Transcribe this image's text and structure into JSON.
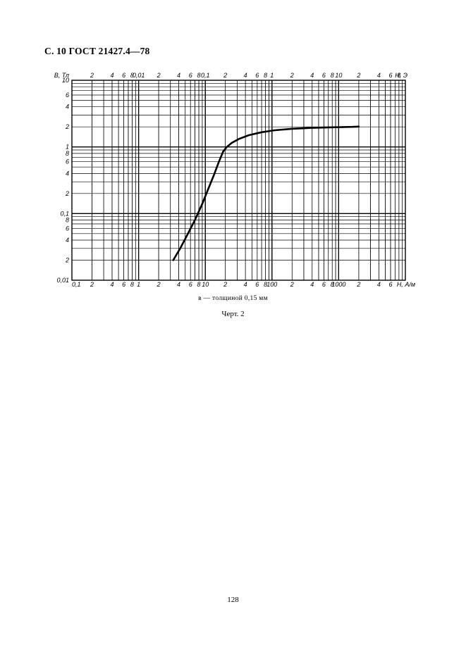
{
  "header": {
    "text": "С. 10 ГОСТ 21427.4—78"
  },
  "chart_data": {
    "type": "line",
    "title": "",
    "x_scale": "log",
    "y_scale": "log",
    "grid": true,
    "y_axis": {
      "label": "В, Тл",
      "ylim": [
        0.01,
        10
      ],
      "tick_labels": [
        {
          "v": 10,
          "t": "10"
        },
        {
          "v": 6,
          "t": "6"
        },
        {
          "v": 4,
          "t": "4"
        },
        {
          "v": 2,
          "t": "2"
        },
        {
          "v": 1,
          "t": "1"
        },
        {
          "v": 0.8,
          "t": "8"
        },
        {
          "v": 0.6,
          "t": "6"
        },
        {
          "v": 0.4,
          "t": "4"
        },
        {
          "v": 0.2,
          "t": "2"
        },
        {
          "v": 0.1,
          "t": "0,1"
        },
        {
          "v": 0.08,
          "t": "8"
        },
        {
          "v": 0.06,
          "t": "6"
        },
        {
          "v": 0.04,
          "t": "4"
        },
        {
          "v": 0.02,
          "t": "2"
        },
        {
          "v": 0.01,
          "t": "0,01"
        }
      ]
    },
    "x_axis_bottom": {
      "label": "Н, А/м",
      "xlim": [
        0.1,
        10000
      ],
      "tick_labels": [
        {
          "v": 0.1,
          "t": "0,1"
        },
        {
          "v": 0.2,
          "t": "2"
        },
        {
          "v": 0.4,
          "t": "4"
        },
        {
          "v": 0.6,
          "t": "6"
        },
        {
          "v": 0.8,
          "t": "8"
        },
        {
          "v": 1,
          "t": "1"
        },
        {
          "v": 2,
          "t": "2"
        },
        {
          "v": 4,
          "t": "4"
        },
        {
          "v": 6,
          "t": "6"
        },
        {
          "v": 8,
          "t": "8"
        },
        {
          "v": 10,
          "t": "10"
        },
        {
          "v": 20,
          "t": "2"
        },
        {
          "v": 40,
          "t": "4"
        },
        {
          "v": 60,
          "t": "6"
        },
        {
          "v": 80,
          "t": "8"
        },
        {
          "v": 100,
          "t": "100"
        },
        {
          "v": 200,
          "t": "2"
        },
        {
          "v": 400,
          "t": "4"
        },
        {
          "v": 600,
          "t": "6"
        },
        {
          "v": 800,
          "t": "8"
        },
        {
          "v": 1000,
          "t": "1000"
        },
        {
          "v": 2000,
          "t": "2"
        },
        {
          "v": 4000,
          "t": "4"
        },
        {
          "v": 6000,
          "t": "6"
        }
      ]
    },
    "x_axis_top": {
      "label": "Н, Э",
      "xlim": [
        0.001,
        100
      ],
      "tick_labels": [
        {
          "v": 0.002,
          "t": "2"
        },
        {
          "v": 0.004,
          "t": "4"
        },
        {
          "v": 0.006,
          "t": "6"
        },
        {
          "v": 0.008,
          "t": "8"
        },
        {
          "v": 0.01,
          "t": "0,01"
        },
        {
          "v": 0.02,
          "t": "2"
        },
        {
          "v": 0.04,
          "t": "4"
        },
        {
          "v": 0.06,
          "t": "6"
        },
        {
          "v": 0.08,
          "t": "8"
        },
        {
          "v": 0.1,
          "t": "0,1"
        },
        {
          "v": 0.2,
          "t": "2"
        },
        {
          "v": 0.4,
          "t": "4"
        },
        {
          "v": 0.6,
          "t": "6"
        },
        {
          "v": 0.8,
          "t": "8"
        },
        {
          "v": 1,
          "t": "1"
        },
        {
          "v": 2,
          "t": "2"
        },
        {
          "v": 4,
          "t": "4"
        },
        {
          "v": 6,
          "t": "6"
        },
        {
          "v": 8,
          "t": "8"
        },
        {
          "v": 10,
          "t": "10"
        },
        {
          "v": 20,
          "t": "2"
        },
        {
          "v": 40,
          "t": "4"
        },
        {
          "v": 60,
          "t": "6"
        },
        {
          "v": 80,
          "t": "8"
        }
      ]
    },
    "series": [
      {
        "points": [
          [
            3.3,
            0.02
          ],
          [
            4.2,
            0.03
          ],
          [
            5.5,
            0.05
          ],
          [
            7,
            0.08
          ],
          [
            9,
            0.14
          ],
          [
            11,
            0.23
          ],
          [
            13.5,
            0.38
          ],
          [
            16,
            0.6
          ],
          [
            18.5,
            0.85
          ],
          [
            21,
            1.0
          ],
          [
            25,
            1.15
          ],
          [
            32,
            1.32
          ],
          [
            45,
            1.5
          ],
          [
            70,
            1.66
          ],
          [
            110,
            1.78
          ],
          [
            200,
            1.87
          ],
          [
            400,
            1.93
          ],
          [
            800,
            1.97
          ],
          [
            1600,
            2.0
          ],
          [
            2000,
            2.02
          ]
        ]
      }
    ]
  },
  "caption": "в — толщиной 0,15 мм",
  "figure_label": "Черт. 2",
  "page_number": "128"
}
